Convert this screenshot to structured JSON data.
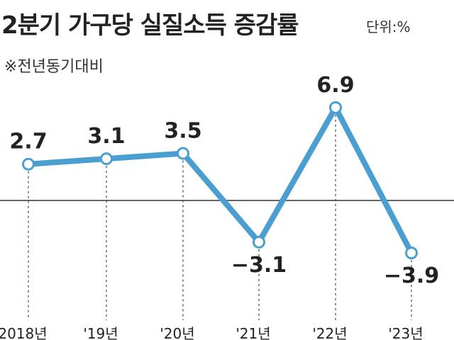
{
  "chart_data": {
    "type": "line",
    "title": "2분기 가구당 실질소득 증감률",
    "unit_label": "단위:%",
    "note": "※전년동기대비",
    "categories": [
      "2018년",
      "'19년",
      "'20년",
      "'21년",
      "'22년",
      "'23년"
    ],
    "series": [
      {
        "values": [
          2.7,
          3.1,
          3.5,
          -3.1,
          6.9,
          -3.9
        ]
      }
    ],
    "data_labels": [
      "2.7",
      "3.1",
      "3.5",
      "−3.1",
      "6.9",
      "−3.9"
    ],
    "ylim": [
      -5.5,
      8.5
    ],
    "baseline": 0,
    "line_color": "#4a9fd0",
    "marker_fill": "#ffffff",
    "guide_style": "dotted",
    "grid": false,
    "legend": "none"
  }
}
